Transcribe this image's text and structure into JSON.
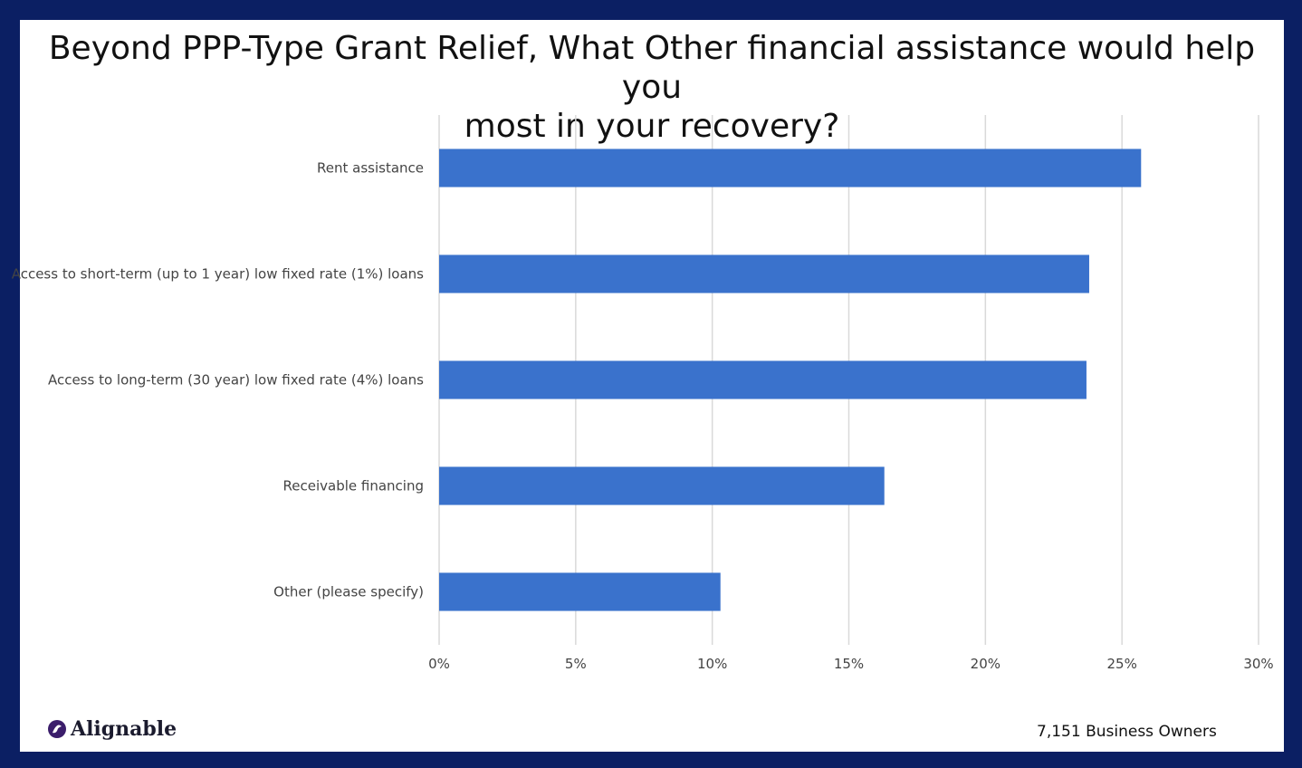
{
  "chart_data": {
    "type": "bar",
    "orientation": "horizontal",
    "title": "Beyond PPP-Type Grant Relief, What Other financial assistance would help you most in your recovery?",
    "title_lines": [
      "Beyond PPP-Type Grant Relief, What Other financial assistance would help you",
      "most in your recovery?"
    ],
    "categories": [
      "Rent assistance",
      "Access to short-term (up to 1 year) low fixed rate (1%) loans",
      "Access to long-term (30 year) low fixed rate (4%) loans",
      "Receivable financing",
      "Other (please specify)"
    ],
    "values": [
      25.7,
      23.8,
      23.7,
      16.3,
      10.3
    ],
    "xlim": [
      0,
      30
    ],
    "xticks": [
      0,
      5,
      10,
      15,
      20,
      25,
      30
    ],
    "xtick_labels": [
      "0%",
      "5%",
      "10%",
      "15%",
      "20%",
      "25%",
      "30%"
    ],
    "grid": "vertical",
    "bar_color": "#3a72cc",
    "xlabel": "",
    "ylabel": ""
  },
  "branding": {
    "logo_text": "Alignable",
    "logo_color": "#3b1d6b"
  },
  "footnote": "7,151 Business Owners",
  "colors": {
    "frame": "#0b1f63",
    "background": "#ffffff",
    "gridline": "#d9d9d9"
  }
}
